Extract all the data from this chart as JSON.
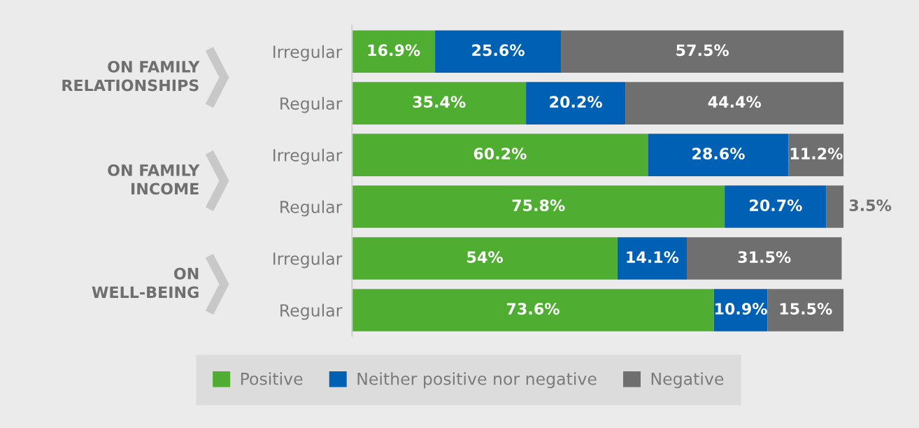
{
  "chart_data": {
    "type": "bar",
    "orientation": "horizontal",
    "stacked": true,
    "categories": [
      "Irregular",
      "Regular",
      "Irregular",
      "Regular",
      "Irregular",
      "Regular"
    ],
    "series": [
      {
        "name": "Positive",
        "color": "#4fae32",
        "values": [
          16.9,
          35.4,
          60.2,
          75.8,
          54,
          73.6
        ],
        "value_labels": [
          "16.9%",
          "35.4%",
          "60.2%",
          "75.8%",
          "54%",
          "73.6%"
        ]
      },
      {
        "name": "Neither positive nor negative",
        "color": "#0061b4",
        "values": [
          25.6,
          20.2,
          28.6,
          20.7,
          14.1,
          10.9
        ],
        "value_labels": [
          "25.6%",
          "20.2%",
          "28.6%",
          "20.7%",
          "14.1%",
          "10.9%"
        ]
      },
      {
        "name": "Negative",
        "color": "#6f6f6f",
        "values": [
          57.5,
          44.4,
          11.2,
          3.5,
          31.5,
          15.5
        ],
        "value_labels": [
          "57.5%",
          "44.4%",
          "11.2%",
          "3.5%",
          "31.5%",
          "15.5%"
        ]
      }
    ],
    "annotations": [
      "ON FAMILY\nRELATIONSHIPS",
      "ON FAMILY\nINCOME",
      "ON\nWELL-BEING"
    ],
    "legend": "bottom",
    "grid": false
  }
}
